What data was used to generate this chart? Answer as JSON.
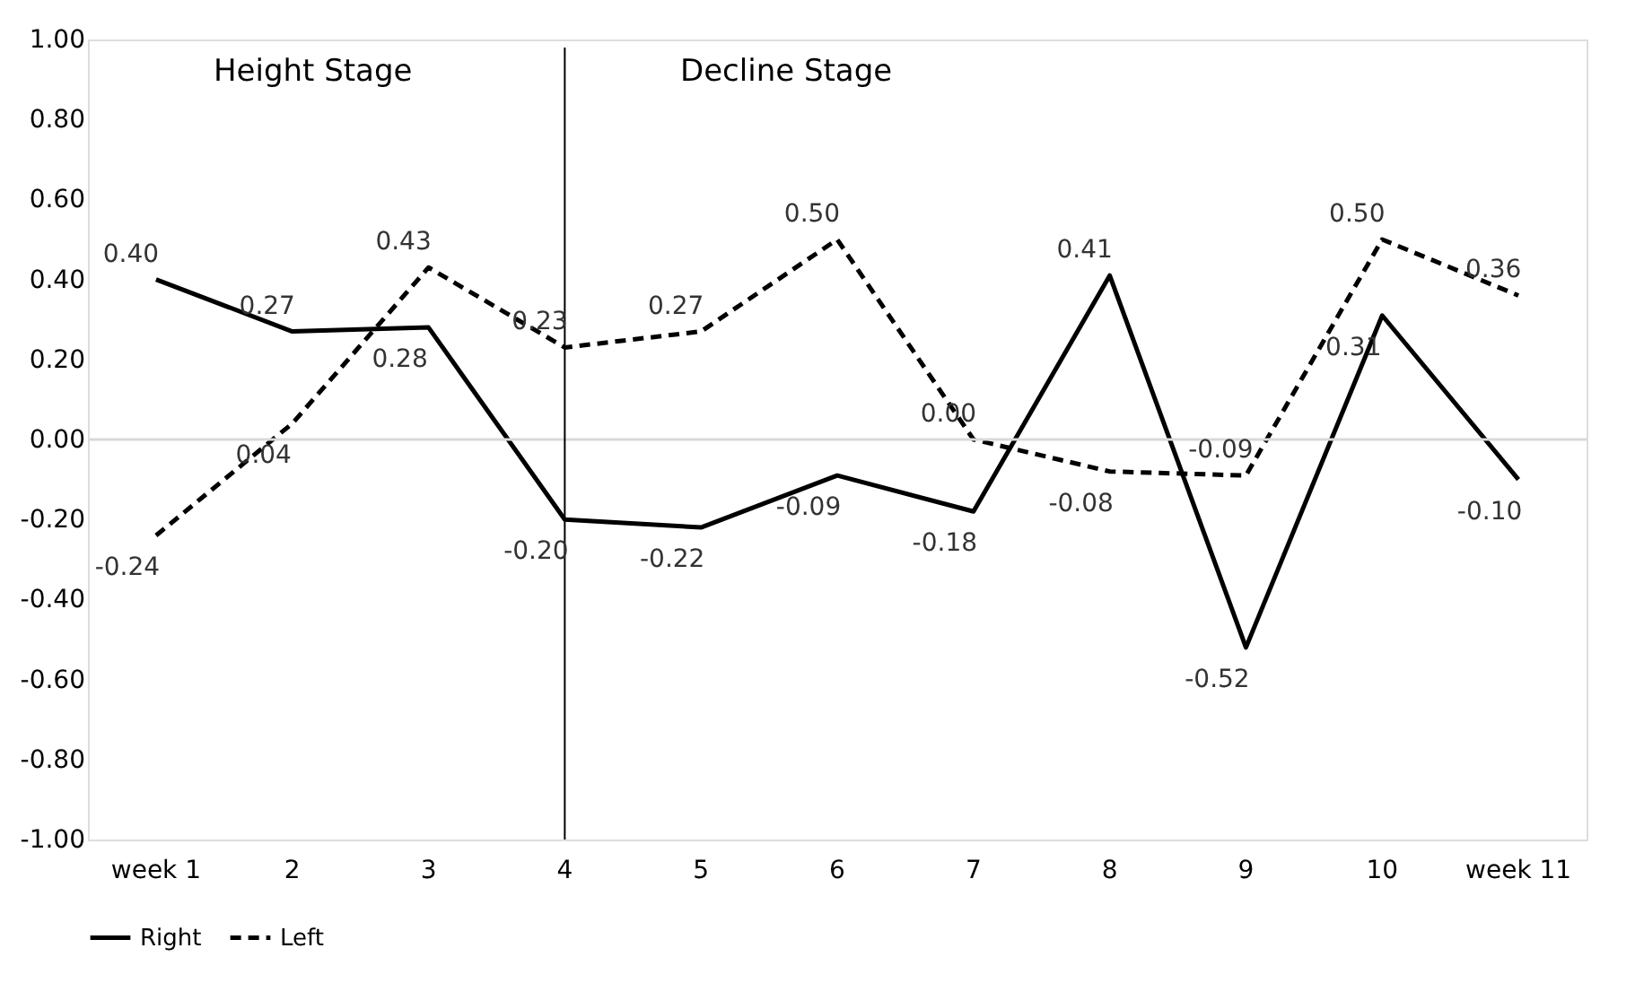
{
  "chart_data": {
    "type": "line",
    "categories": [
      "week 1",
      "2",
      "3",
      "4",
      "5",
      "6",
      "7",
      "8",
      "9",
      "10",
      "week 11"
    ],
    "series": [
      {
        "name": "Right",
        "color": "#000000",
        "line_style": "solid",
        "values": [
          0.4,
          0.27,
          0.28,
          -0.2,
          -0.22,
          -0.09,
          -0.18,
          0.41,
          -0.52,
          0.31,
          -0.1
        ],
        "value_labels": [
          "0.40",
          "0.27",
          "0.28",
          "-0.20",
          "-0.22",
          "-0.09",
          "-0.18",
          "0.41",
          "-0.52",
          "0.31",
          "-0.10"
        ]
      },
      {
        "name": "Left",
        "color": "#000000",
        "line_style": "dashed",
        "values": [
          -0.24,
          0.04,
          0.43,
          0.23,
          0.27,
          0.5,
          0.0,
          -0.08,
          -0.09,
          0.5,
          0.36
        ],
        "value_labels": [
          "-0.24",
          "0.04",
          "0.43",
          "0.23",
          "0.27",
          "0.50",
          "0.00",
          "-0.08",
          "-0.09",
          "0.50",
          "0.36"
        ]
      }
    ],
    "ylim": [
      -1.0,
      1.0
    ],
    "yticks": [
      {
        "value": -1.0,
        "label": "-1.00"
      },
      {
        "value": -0.8,
        "label": "-0.80"
      },
      {
        "value": -0.6,
        "label": "-0.60"
      },
      {
        "value": -0.4,
        "label": "-0.40"
      },
      {
        "value": -0.2,
        "label": "-0.20"
      },
      {
        "value": 0,
        "label": "0.00"
      },
      {
        "value": 0.2,
        "label": "0.20"
      },
      {
        "value": 0.4,
        "label": "0.40"
      },
      {
        "value": 0.6,
        "label": "0.60"
      },
      {
        "value": 0.8,
        "label": "0.80"
      },
      {
        "value": 1.0,
        "label": "1.00"
      }
    ],
    "grid": false,
    "legend": "bottom",
    "marker": "none",
    "ref_lines": [
      {
        "axis": "y",
        "value": 0,
        "color": "#d9d9d9"
      },
      {
        "axis": "x",
        "value": "4",
        "color": "#000000"
      }
    ],
    "annotations": [
      "Height Stage",
      "Decline Stage"
    ]
  }
}
